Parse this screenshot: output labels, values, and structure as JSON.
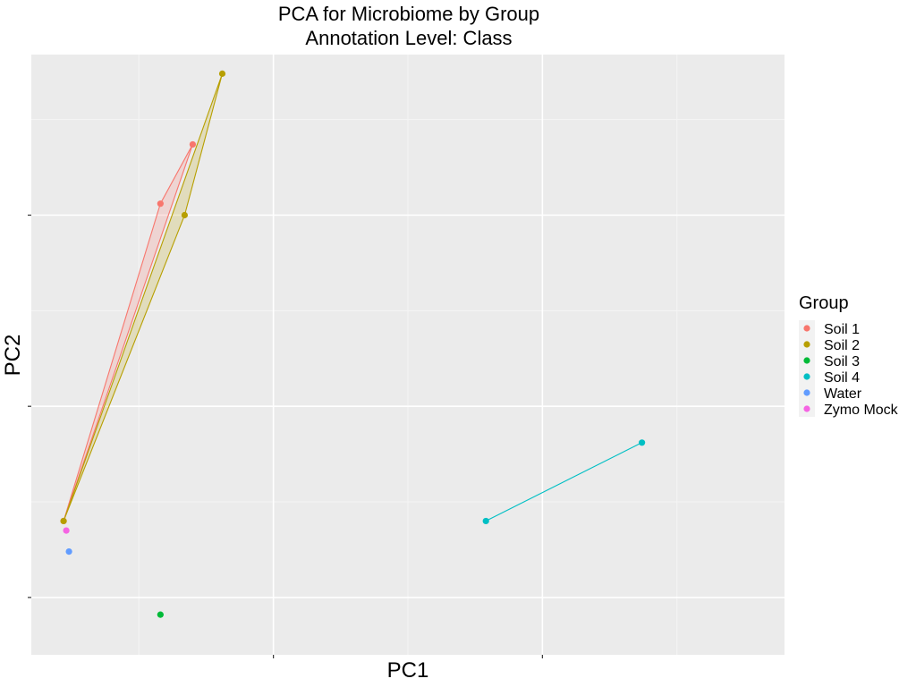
{
  "chart_data": {
    "type": "scatter",
    "title": "PCA for Microbiome by Group",
    "subtitle": "Annotation Level: Class",
    "xlabel": "PC1",
    "ylabel": "PC2",
    "xlim": [
      -0.45,
      0.95
    ],
    "ylim": [
      -0.95,
      0.62
    ],
    "x_ticks": [
      0,
      0.5
    ],
    "y_ticks": [
      -0.8,
      -0.3,
      0.2
    ],
    "x_minor_ticks": [
      -0.25,
      0.25,
      0.75
    ],
    "y_minor_ticks": [
      -0.55,
      -0.05,
      0.45
    ],
    "grid": true,
    "legend": {
      "title": "Group",
      "position": "right"
    },
    "hulls": [
      "Soil 1",
      "Soil 2",
      "Soil 4"
    ],
    "series": [
      {
        "name": "Soil 1",
        "color": "#F8766D",
        "points": [
          [
            -0.39,
            -0.6
          ],
          [
            -0.21,
            0.23
          ],
          [
            -0.15,
            0.385
          ]
        ]
      },
      {
        "name": "Soil 2",
        "color": "#B79F00",
        "points": [
          [
            -0.39,
            -0.6
          ],
          [
            -0.165,
            0.2
          ],
          [
            -0.095,
            0.57
          ]
        ]
      },
      {
        "name": "Soil 3",
        "color": "#00BA38",
        "points": [
          [
            -0.21,
            -0.845
          ]
        ]
      },
      {
        "name": "Soil 4",
        "color": "#00BFC4",
        "points": [
          [
            0.395,
            -0.6
          ],
          [
            0.685,
            -0.395
          ]
        ]
      },
      {
        "name": "Water",
        "color": "#619CFF",
        "points": [
          [
            -0.38,
            -0.68
          ]
        ]
      },
      {
        "name": "Zymo Mock",
        "color": "#F564E3",
        "points": [
          [
            -0.385,
            -0.625
          ]
        ]
      }
    ]
  }
}
